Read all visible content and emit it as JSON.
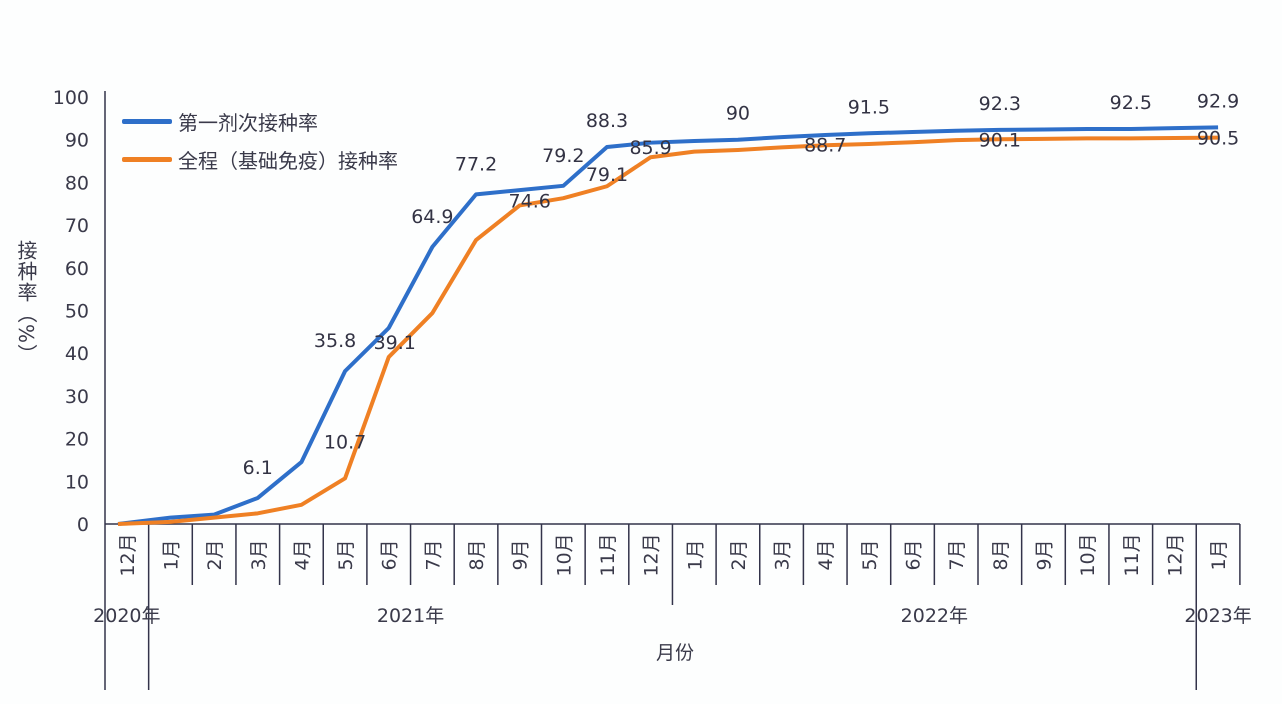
{
  "chart_data": {
    "type": "line",
    "title": "",
    "xlabel": "月份",
    "ylabel": "接种率（%）",
    "ylim": [
      0,
      100
    ],
    "yticks": [
      0,
      10,
      20,
      30,
      40,
      50,
      60,
      70,
      80,
      90,
      100
    ],
    "grid": false,
    "legend_position": "top-left",
    "categories": [
      "12月",
      "1月",
      "2月",
      "3月",
      "4月",
      "5月",
      "6月",
      "7月",
      "8月",
      "9月",
      "10月",
      "11月",
      "12月",
      "1月",
      "2月",
      "3月",
      "4月",
      "5月",
      "6月",
      "7月",
      "8月",
      "9月",
      "10月",
      "11月",
      "12月",
      "1月"
    ],
    "year_groups": [
      {
        "label": "2020年",
        "span": 1
      },
      {
        "label": "2021年",
        "span": 12
      },
      {
        "label": "2022年",
        "span": 12
      },
      {
        "label": "2023年",
        "span": 1
      }
    ],
    "series": [
      {
        "name": "第一剂次接种率",
        "color": "#2e6fc9",
        "values": [
          0,
          1.5,
          2.2,
          6.1,
          14.5,
          35.8,
          45.9,
          64.9,
          77.2,
          78.2,
          79.2,
          88.3,
          89.3,
          89.7,
          90,
          90.6,
          91.1,
          91.5,
          91.8,
          92.1,
          92.3,
          92.4,
          92.5,
          92.5,
          92.7,
          92.9
        ],
        "labeled_values": {
          "3": "6.1",
          "5": "35.8",
          "7": "64.9",
          "8": "77.2",
          "10": "79.2",
          "11": "88.3",
          "14": "90",
          "17": "91.5",
          "20": "92.3",
          "23": "92.5",
          "25": "92.9"
        }
      },
      {
        "name": "全程（基础免疫）接种率",
        "color": "#ef8024",
        "values": [
          0,
          0.5,
          1.5,
          2.5,
          4.5,
          10.7,
          39.1,
          49.4,
          66.5,
          74.6,
          76.3,
          79.1,
          85.9,
          87.2,
          87.6,
          88.2,
          88.7,
          89,
          89.4,
          89.9,
          90.1,
          90.2,
          90.3,
          90.3,
          90.4,
          90.5
        ],
        "labeled_values": {
          "5": "10.7",
          "6": "39.1",
          "9": "74.6",
          "11": "79.1",
          "12": "85.9",
          "16": "88.7",
          "20": "90.1",
          "25": "90.5"
        }
      }
    ]
  }
}
